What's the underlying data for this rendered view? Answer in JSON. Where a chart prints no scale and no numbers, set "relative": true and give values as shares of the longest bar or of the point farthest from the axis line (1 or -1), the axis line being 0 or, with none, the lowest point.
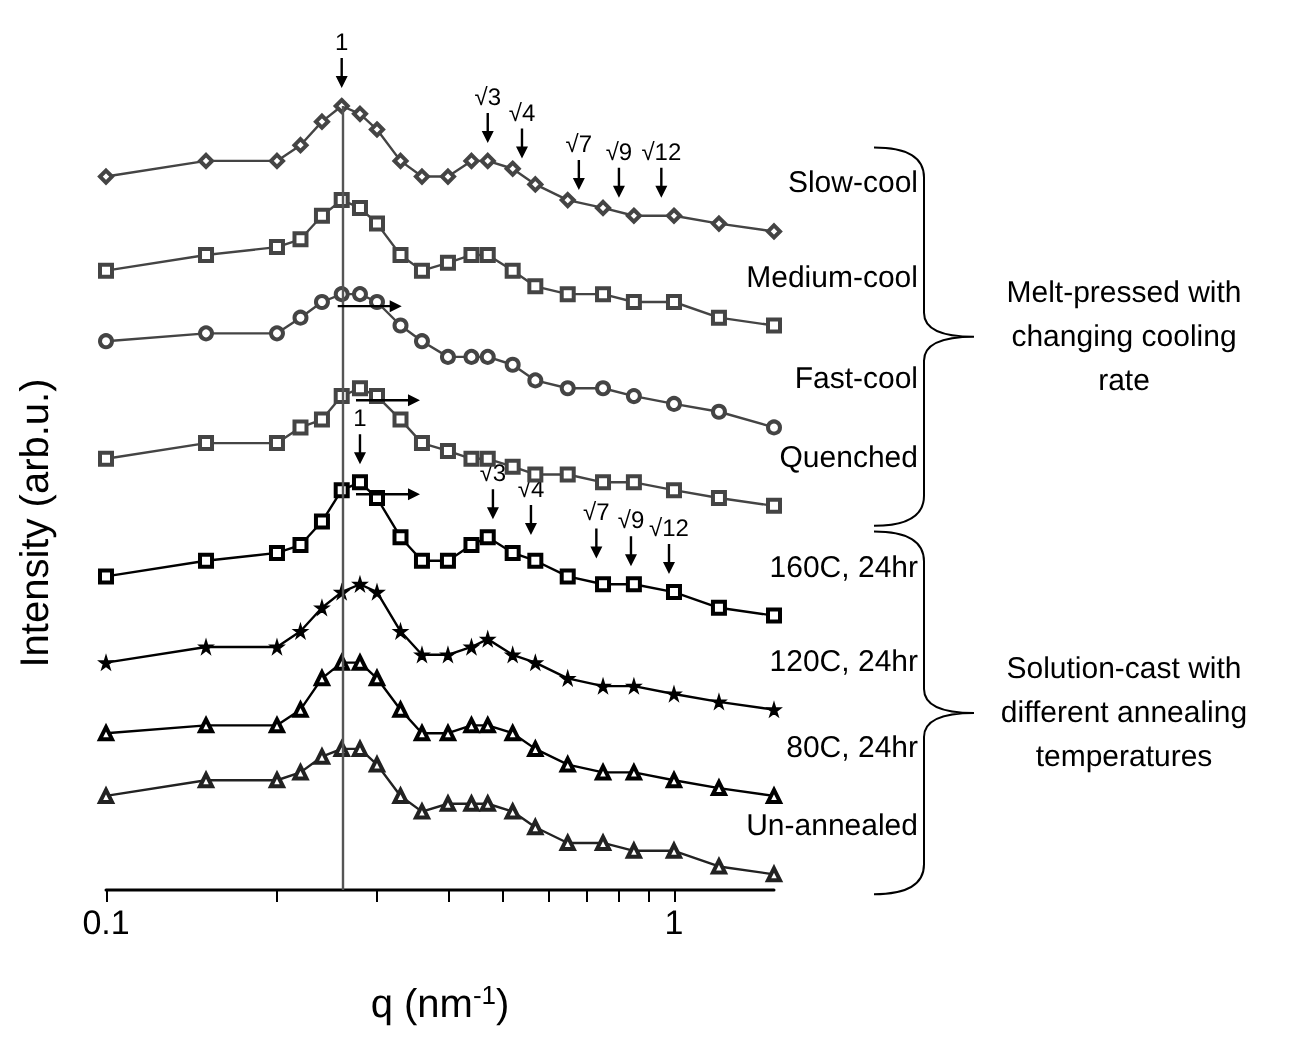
{
  "chart_data": {
    "type": "line",
    "relative": true,
    "xlabel": "q (nm$^{-1}$)",
    "ylabel": "Intensity (arb.u.)",
    "log": "x",
    "tick_labels": "x",
    "xlim": [
      0.1,
      1.5
    ],
    "xticks": [
      0.1,
      {
        "value": 0.2,
        "label": null
      },
      {
        "value": 0.3,
        "label": null
      },
      {
        "value": 0.4,
        "label": null
      },
      {
        "value": 0.5,
        "label": null
      },
      {
        "value": 0.6,
        "label": null
      },
      {
        "value": 0.7,
        "label": null
      },
      {
        "value": 0.8,
        "label": null
      },
      {
        "value": 0.9,
        "label": null
      },
      1
    ],
    "x": [
      0.1,
      0.15,
      0.2,
      0.22,
      0.24,
      0.26,
      0.28,
      0.3,
      0.33,
      0.36,
      0.4,
      0.44,
      0.47,
      0.52,
      0.57,
      0.65,
      0.75,
      0.85,
      1.0,
      1.2,
      1.5
    ],
    "series": [
      {
        "name": "Slow-cool",
        "color": "#444444",
        "marker": "diamond",
        "values": [
          0.91,
          0.93,
          0.93,
          0.95,
          0.98,
          1.0,
          0.99,
          0.97,
          0.93,
          0.91,
          0.91,
          0.93,
          0.93,
          0.92,
          0.9,
          0.88,
          0.87,
          0.86,
          0.86,
          0.85,
          0.84
        ]
      },
      {
        "name": "Medium-cool",
        "color": "#444444",
        "marker": "square",
        "values": [
          0.79,
          0.81,
          0.82,
          0.83,
          0.86,
          0.88,
          0.87,
          0.85,
          0.81,
          0.79,
          0.8,
          0.81,
          0.81,
          0.79,
          0.77,
          0.76,
          0.76,
          0.75,
          0.75,
          0.73,
          0.72
        ]
      },
      {
        "name": "Fast-cool",
        "color": "#444444",
        "marker": "circle",
        "values": [
          0.7,
          0.71,
          0.71,
          0.73,
          0.75,
          0.76,
          0.76,
          0.75,
          0.72,
          0.7,
          0.68,
          0.68,
          0.68,
          0.67,
          0.65,
          0.64,
          0.64,
          0.63,
          0.62,
          0.61,
          0.59
        ]
      },
      {
        "name": "Quenched",
        "color": "#444444",
        "marker": "square",
        "values": [
          0.55,
          0.57,
          0.57,
          0.59,
          0.6,
          0.63,
          0.64,
          0.63,
          0.6,
          0.57,
          0.56,
          0.55,
          0.55,
          0.54,
          0.53,
          0.53,
          0.52,
          0.52,
          0.51,
          0.5,
          0.49
        ]
      },
      {
        "name": "160C, 24hr",
        "color": "#000000",
        "marker": "square",
        "values": [
          0.4,
          0.42,
          0.43,
          0.44,
          0.47,
          0.51,
          0.52,
          0.5,
          0.45,
          0.42,
          0.42,
          0.44,
          0.45,
          0.43,
          0.42,
          0.4,
          0.39,
          0.39,
          0.38,
          0.36,
          0.35
        ]
      },
      {
        "name": "120C, 24hr",
        "color": "#000000",
        "marker": "star",
        "values": [
          0.29,
          0.31,
          0.31,
          0.33,
          0.36,
          0.38,
          0.39,
          0.38,
          0.33,
          0.3,
          0.3,
          0.31,
          0.32,
          0.3,
          0.29,
          0.27,
          0.26,
          0.26,
          0.25,
          0.24,
          0.23
        ]
      },
      {
        "name": "80C, 24hr",
        "color": "#000000",
        "marker": "triangle",
        "values": [
          0.2,
          0.21,
          0.21,
          0.23,
          0.27,
          0.29,
          0.29,
          0.27,
          0.23,
          0.2,
          0.2,
          0.21,
          0.21,
          0.2,
          0.18,
          0.16,
          0.15,
          0.15,
          0.14,
          0.13,
          0.12
        ]
      },
      {
        "name": "Un-annealed",
        "color": "#222222",
        "marker": "triangle",
        "values": [
          0.12,
          0.14,
          0.14,
          0.15,
          0.17,
          0.18,
          0.18,
          0.16,
          0.12,
          0.1,
          0.11,
          0.11,
          0.11,
          0.1,
          0.08,
          0.06,
          0.06,
          0.05,
          0.05,
          0.03,
          0.02
        ]
      }
    ],
    "ref_lines": [
      {
        "axis": "x",
        "value": 0.26,
        "color": "#555555"
      }
    ],
    "annotations": [
      {
        "text": "1",
        "x": 0.26,
        "y": 1.0
      },
      {
        "text": "√3",
        "x": 0.47,
        "y": 0.93
      },
      {
        "text": "√4",
        "x": 0.54,
        "y": 0.91
      },
      {
        "text": "√7",
        "x": 0.68,
        "y": 0.87
      },
      {
        "text": "√9",
        "x": 0.8,
        "y": 0.86
      },
      {
        "text": "√12",
        "x": 0.95,
        "y": 0.86
      },
      {
        "text": "1",
        "x": 0.28,
        "y": 0.52
      },
      {
        "text": "√3",
        "x": 0.48,
        "y": 0.45
      },
      {
        "text": "√4",
        "x": 0.56,
        "y": 0.43
      },
      {
        "text": "√7",
        "x": 0.73,
        "y": 0.4
      },
      {
        "text": "√9",
        "x": 0.84,
        "y": 0.39
      },
      {
        "text": "√12",
        "x": 0.98,
        "y": 0.38
      },
      "Melt-pressed with\nchanging cooling\nrate",
      "Solution-cast with\ndifferent annealing\ntemperatures"
    ]
  }
}
